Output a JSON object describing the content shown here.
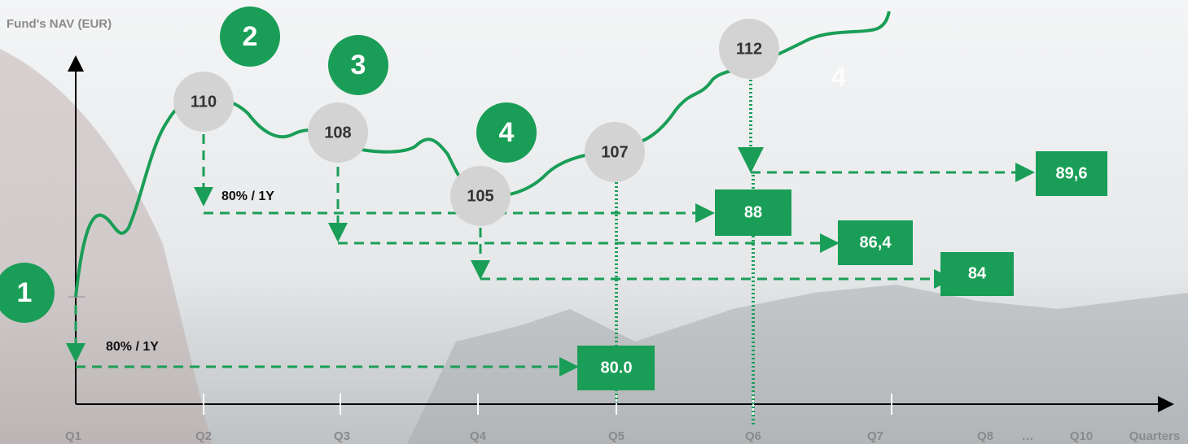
{
  "y_axis_label": "Fund's NAV (EUR)",
  "x_axis_label": "Quarters",
  "x_labels": [
    "Q1",
    "Q2",
    "Q3",
    "Q4",
    "Q5",
    "Q6",
    "Q7",
    "Q8",
    "…",
    "Q10"
  ],
  "steps": [
    "1",
    "2",
    "3",
    "4",
    "4"
  ],
  "nav_points": [
    "110",
    "108",
    "105",
    "107",
    "112"
  ],
  "floors": [
    "88",
    "86,4",
    "84",
    "80.0",
    "89,6"
  ],
  "annotations": [
    "80% / 1Y",
    "80% / 1Y"
  ]
}
